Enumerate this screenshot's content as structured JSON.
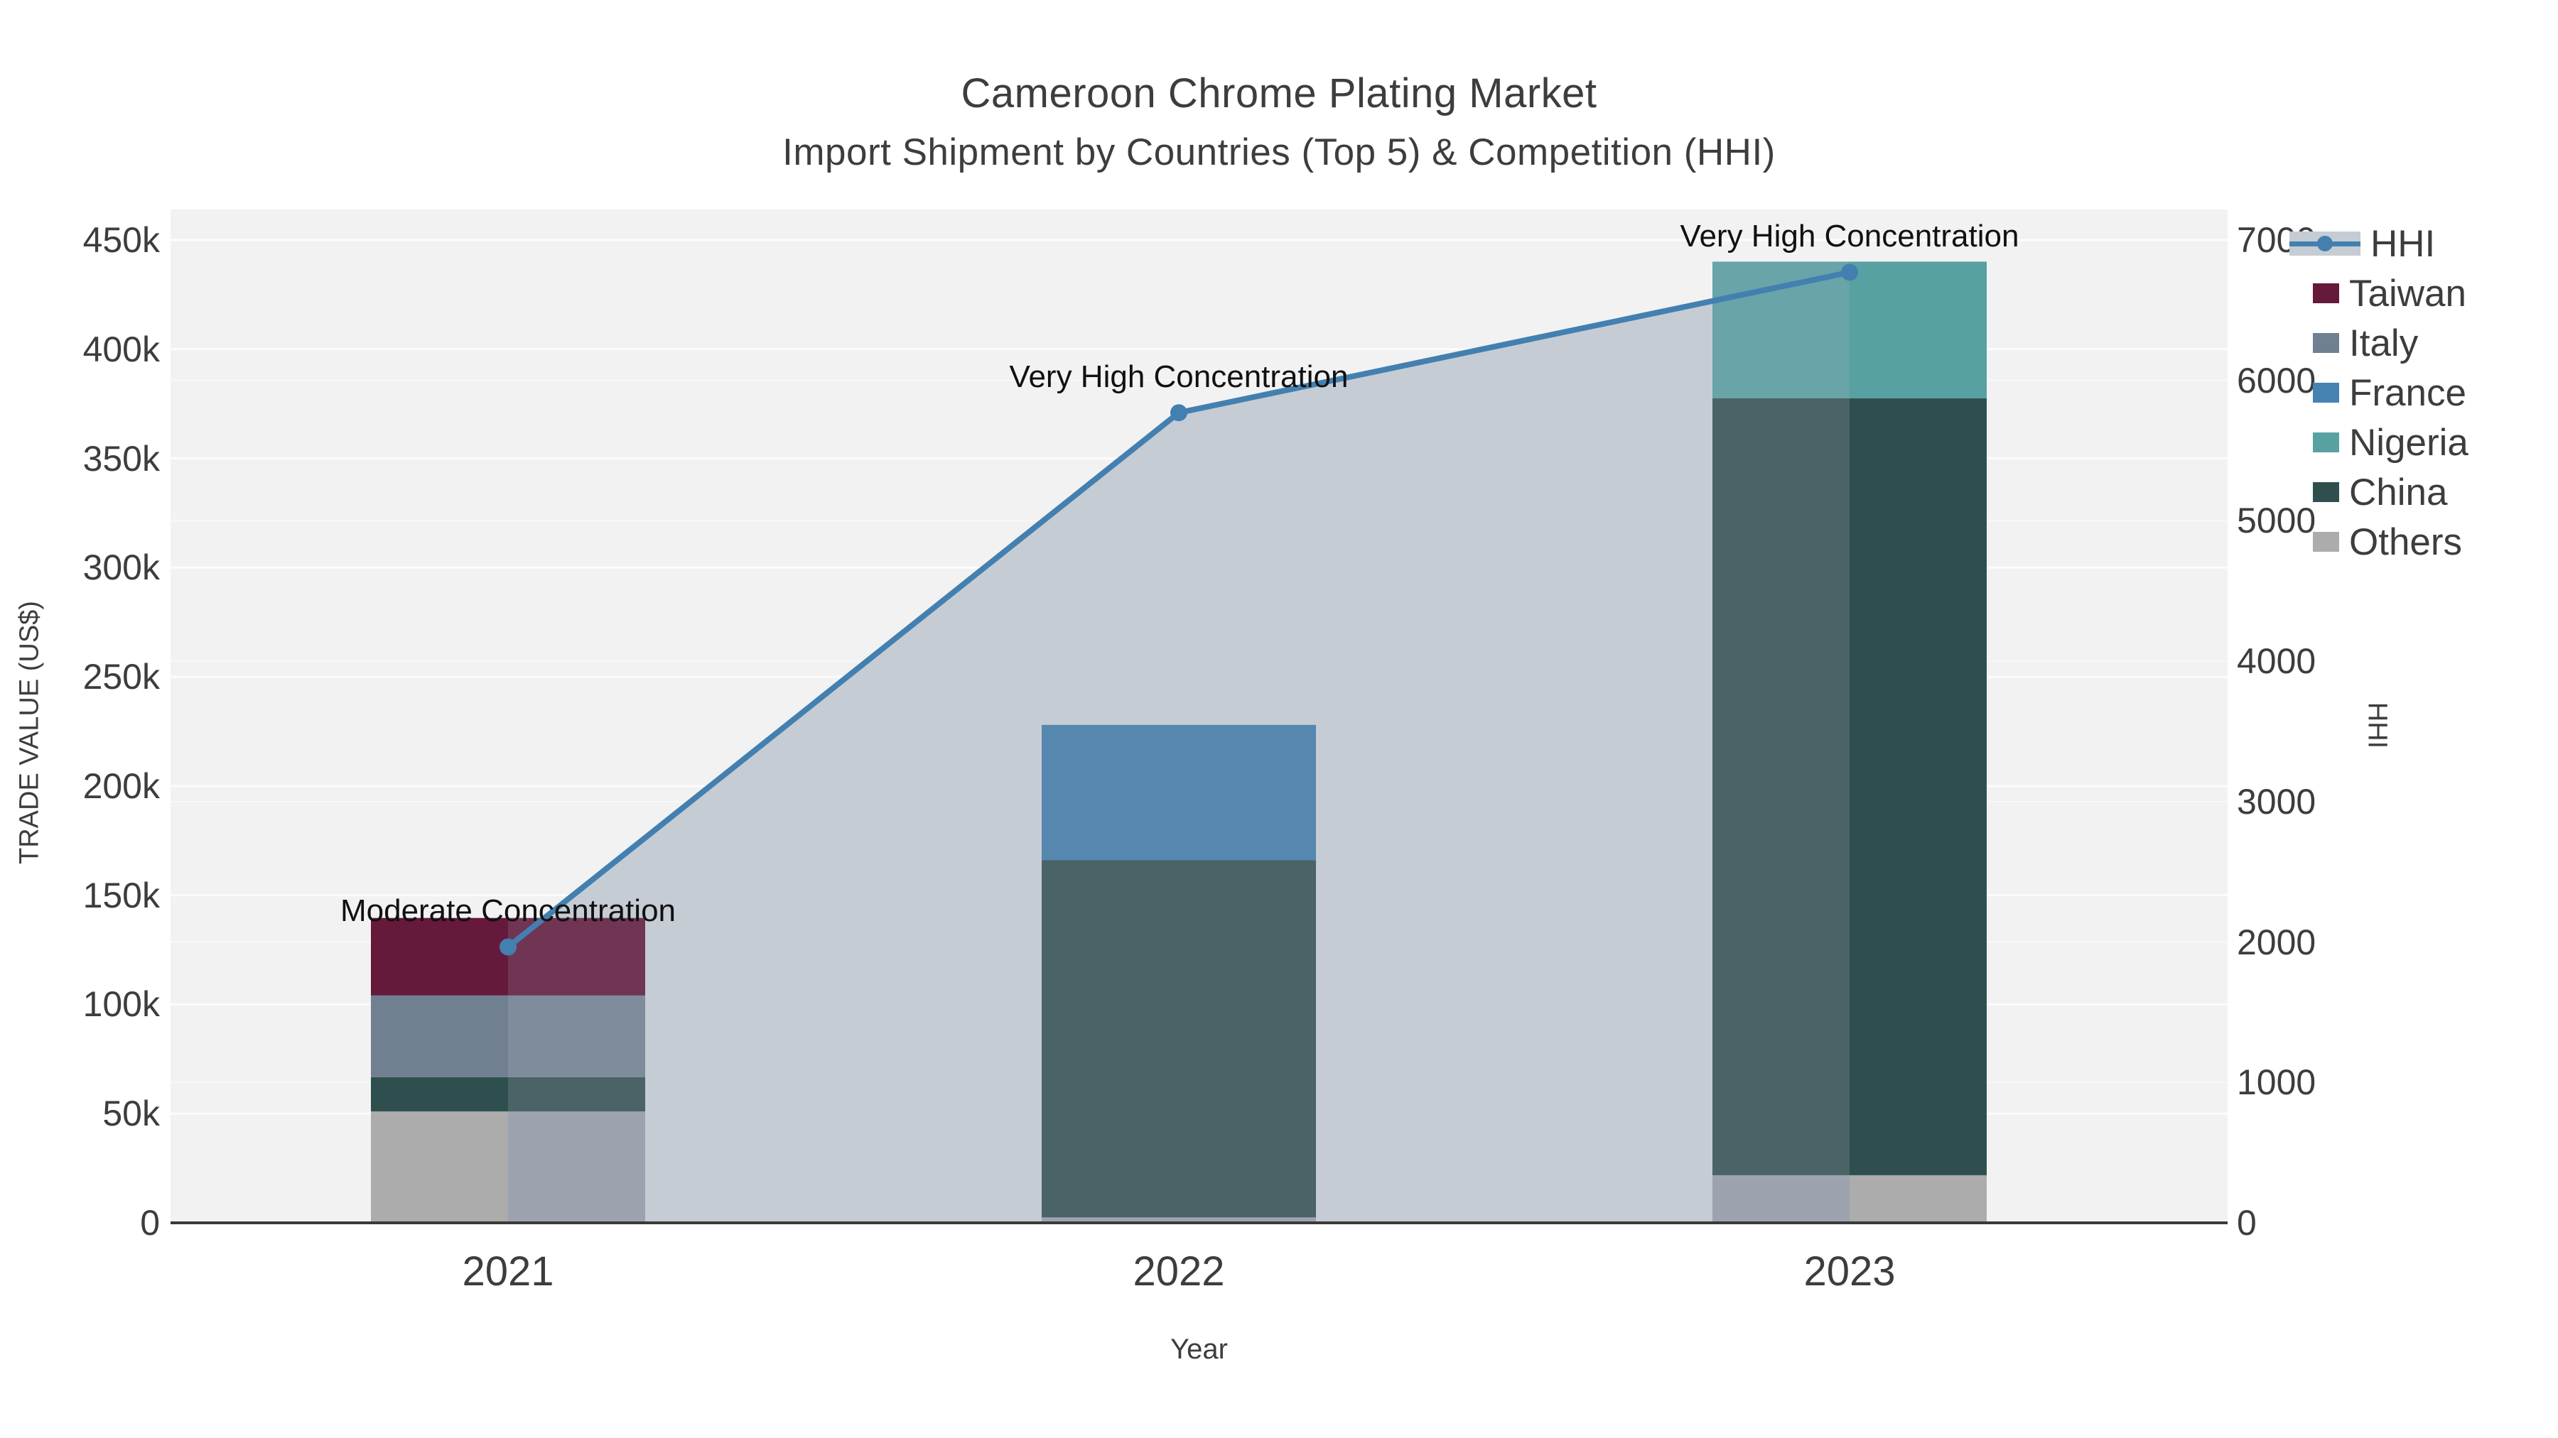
{
  "title": {
    "line1": "Cameroon Chrome Plating Market",
    "line2": "Import Shipment by Countries (Top 5) & Competition (HHI)"
  },
  "axes": {
    "y_left": {
      "title": "TRADE VALUE (US$)",
      "tick_labels": [
        "0",
        "50k",
        "100k",
        "150k",
        "200k",
        "250k",
        "300k",
        "350k",
        "400k",
        "450k"
      ],
      "tick_step": 50000,
      "max": 450000
    },
    "y_right": {
      "title": "HHI",
      "tick_labels": [
        "0",
        "1000",
        "2000",
        "3000",
        "4000",
        "5000",
        "6000",
        "7000"
      ],
      "tick_step": 1000,
      "max": 7000
    },
    "x": {
      "title": "Year",
      "categories": [
        "2021",
        "2022",
        "2023"
      ]
    }
  },
  "legend": {
    "items": [
      {
        "label": "HHI",
        "kind": "line",
        "color": "#4380B0",
        "band": "#C6CCD4"
      },
      {
        "label": "Taiwan",
        "kind": "swatch",
        "color": "#65193B"
      },
      {
        "label": "Italy",
        "kind": "swatch",
        "color": "#708090"
      },
      {
        "label": "France",
        "kind": "swatch",
        "color": "#4682B4"
      },
      {
        "label": "Nigeria",
        "kind": "swatch",
        "color": "#58A1A2"
      },
      {
        "label": "China",
        "kind": "swatch",
        "color": "#2F4F4F"
      },
      {
        "label": "Others",
        "kind": "swatch",
        "color": "#ACACAC"
      }
    ]
  },
  "palette": {
    "plot_background": "#F2F2F3",
    "page_background": "#FFFFFF",
    "grid_major": "rgba(255,255,255,0.75)",
    "grid_minor": "rgba(255,255,255,0.45)",
    "axis_line": "#3A3A3A",
    "text": "#3D3D3D",
    "annotation_text": "#111111",
    "hhi_line": "#4380B0",
    "hhi_fill": "#C6CCD4"
  },
  "chart_data": {
    "type": "bar",
    "subtype": "stacked-bars-with-secondary-axis-line",
    "title": "Cameroon Chrome Plating Market — Import Shipment by Countries (Top 5) & Competition (HHI)",
    "categories": [
      "2021",
      "2022",
      "2023"
    ],
    "stack_order_bottom_to_top": [
      "Others",
      "China",
      "Nigeria",
      "France",
      "Italy",
      "Taiwan"
    ],
    "series": [
      {
        "name": "Others",
        "values": [
          51000,
          2500,
          21800
        ],
        "color": "#ACACAC",
        "muted": "#9DA3AE"
      },
      {
        "name": "China",
        "values": [
          15700,
          163600,
          355700
        ],
        "color": "#2F4F4F",
        "muted": "#4A6366"
      },
      {
        "name": "Nigeria",
        "values": [
          0,
          0,
          62600
        ],
        "color": "#58A1A2",
        "muted": "#68A4A8"
      },
      {
        "name": "France",
        "values": [
          0,
          61900,
          0
        ],
        "color": "#4682B4",
        "muted": "#5587AF"
      },
      {
        "name": "Italy",
        "values": [
          37400,
          0,
          0
        ],
        "color": "#708090",
        "muted": "#7E8C9C"
      },
      {
        "name": "Taiwan",
        "values": [
          35500,
          0,
          0
        ],
        "color": "#65193B",
        "muted": "#703552"
      }
    ],
    "bar_totals": [
      139600,
      228000,
      440100
    ],
    "line_series": {
      "name": "HHI",
      "axis": "y2",
      "values": [
        1965,
        5770,
        6770
      ],
      "color": "#4380B0",
      "fill_color": "#C6CCD4",
      "fill": "tozeroy"
    },
    "annotations": [
      {
        "text": "Moderate Concentration",
        "category_index": 0
      },
      {
        "text": "Very High Concentration",
        "category_index": 1
      },
      {
        "text": "Very High Concentration",
        "category_index": 2
      }
    ],
    "xlabel": "Year",
    "ylabel": "TRADE VALUE (US$)",
    "y2label": "HHI",
    "ylim": [
      0,
      450000
    ],
    "y2lim": [
      0,
      7000
    ],
    "grid": true,
    "legend_position": "right-top-outside"
  }
}
